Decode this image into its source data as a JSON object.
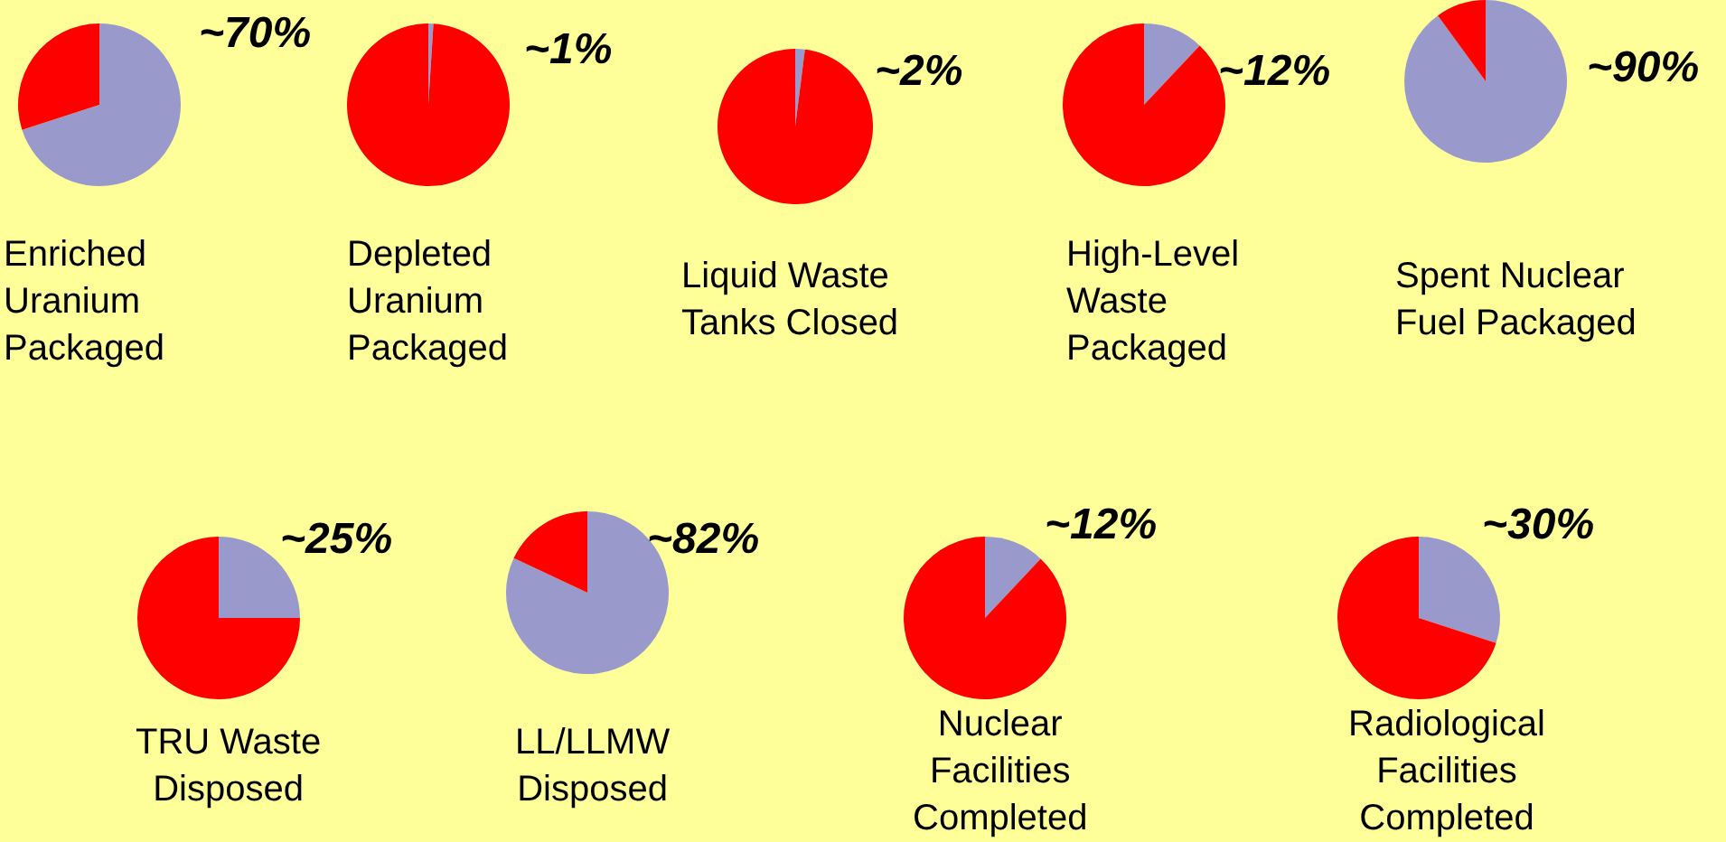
{
  "chart_data": [
    {
      "type": "pie",
      "title": "Enriched\nUranium\nPackaged",
      "categories": [
        null,
        null
      ],
      "values": [
        70,
        30
      ],
      "colors": [
        "#9999cc",
        "#ff0000"
      ],
      "annotations": [
        "~70%"
      ]
    },
    {
      "type": "pie",
      "title": "Depleted\nUranium\nPackaged",
      "categories": [
        null,
        null
      ],
      "values": [
        1,
        99
      ],
      "colors": [
        "#9999cc",
        "#ff0000"
      ],
      "annotations": [
        "~1%"
      ]
    },
    {
      "type": "pie",
      "title": "Liquid Waste\nTanks Closed",
      "categories": [
        null,
        null
      ],
      "values": [
        2,
        98
      ],
      "colors": [
        "#9999cc",
        "#ff0000"
      ],
      "annotations": [
        "~2%"
      ]
    },
    {
      "type": "pie",
      "title": "High-Level\nWaste\nPackaged",
      "categories": [
        null,
        null
      ],
      "values": [
        12,
        88
      ],
      "colors": [
        "#9999cc",
        "#ff0000"
      ],
      "annotations": [
        "~12%"
      ]
    },
    {
      "type": "pie",
      "title": "Spent Nuclear\nFuel Packaged",
      "categories": [
        null,
        null
      ],
      "values": [
        90,
        10
      ],
      "colors": [
        "#9999cc",
        "#ff0000"
      ],
      "annotations": [
        "~90%"
      ]
    },
    {
      "type": "pie",
      "title": "TRU Waste\nDisposed",
      "categories": [
        null,
        null
      ],
      "values": [
        25,
        75
      ],
      "colors": [
        "#9999cc",
        "#ff0000"
      ],
      "annotations": [
        "~25%"
      ]
    },
    {
      "type": "pie",
      "title": "LL/LLMW\nDisposed",
      "categories": [
        null,
        null
      ],
      "values": [
        82,
        18
      ],
      "colors": [
        "#9999cc",
        "#ff0000"
      ],
      "annotations": [
        "~82%"
      ]
    },
    {
      "type": "pie",
      "title": "Nuclear\nFacilities\nCompleted",
      "categories": [
        null,
        null
      ],
      "values": [
        12,
        88
      ],
      "colors": [
        "#9999cc",
        "#ff0000"
      ],
      "annotations": [
        "~12%"
      ]
    },
    {
      "type": "pie",
      "title": "Radiological\nFacilities\nCompleted",
      "categories": [
        null,
        null
      ],
      "values": [
        30,
        70
      ],
      "colors": [
        "#9999cc",
        "#ff0000"
      ],
      "annotations": [
        "~30%"
      ]
    }
  ]
}
